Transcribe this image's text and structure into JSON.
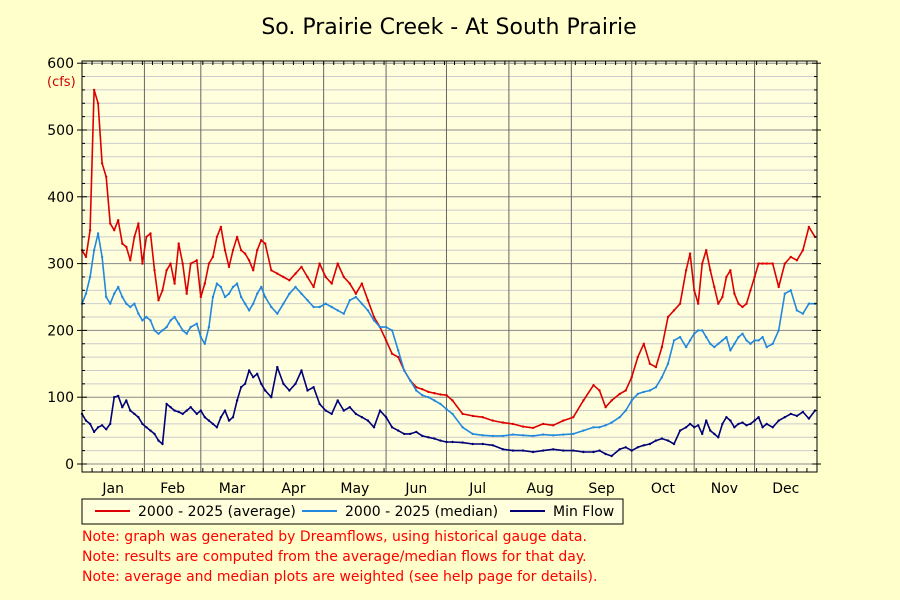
{
  "chart_data": {
    "type": "line",
    "title": "So. Prairie Creek - At South Prairie",
    "ylabel": "(cfs)",
    "xlabel": "",
    "ylim": [
      0,
      600
    ],
    "yticks": [
      0,
      100,
      200,
      300,
      400,
      500,
      600
    ],
    "grid": true,
    "legend_position": "bottom",
    "months": [
      "Jan",
      "Feb",
      "Mar",
      "Apr",
      "May",
      "Jun",
      "Jul",
      "Aug",
      "Sep",
      "Oct",
      "Nov",
      "Dec"
    ],
    "x_unit": "day of year",
    "xlim": [
      1,
      366
    ],
    "series": [
      {
        "name": "2000 - 2025 (average)",
        "color": "#dd0000",
        "x": [
          1,
          3,
          5,
          7,
          9,
          11,
          13,
          15,
          17,
          19,
          21,
          23,
          25,
          27,
          29,
          31,
          33,
          35,
          37,
          39,
          41,
          43,
          45,
          47,
          49,
          51,
          53,
          55,
          58,
          60,
          62,
          64,
          66,
          68,
          70,
          72,
          74,
          76,
          78,
          80,
          82,
          84,
          86,
          88,
          90,
          92,
          95,
          98,
          101,
          104,
          107,
          110,
          113,
          116,
          119,
          122,
          125,
          128,
          131,
          134,
          137,
          140,
          143,
          146,
          149,
          152,
          155,
          158,
          161,
          164,
          167,
          170,
          173,
          176,
          179,
          182,
          185,
          190,
          195,
          200,
          205,
          210,
          215,
          220,
          225,
          230,
          235,
          240,
          245,
          250,
          255,
          258,
          261,
          264,
          268,
          271,
          274,
          277,
          280,
          283,
          286,
          289,
          292,
          295,
          298,
          301,
          303,
          305,
          307,
          309,
          311,
          313,
          315,
          317,
          319,
          321,
          323,
          325,
          327,
          329,
          331,
          333,
          335,
          337,
          339,
          341,
          344,
          347,
          350,
          353,
          356,
          359,
          362,
          365
        ],
        "values": [
          320,
          310,
          350,
          560,
          540,
          450,
          430,
          360,
          350,
          365,
          330,
          325,
          305,
          340,
          360,
          300,
          340,
          345,
          290,
          245,
          260,
          290,
          300,
          270,
          330,
          300,
          255,
          300,
          305,
          250,
          270,
          300,
          310,
          340,
          355,
          320,
          295,
          320,
          340,
          320,
          315,
          305,
          290,
          320,
          335,
          330,
          290,
          285,
          280,
          275,
          285,
          295,
          280,
          265,
          300,
          280,
          270,
          300,
          280,
          270,
          255,
          270,
          245,
          220,
          205,
          185,
          165,
          160,
          140,
          125,
          115,
          112,
          108,
          106,
          104,
          103,
          95,
          75,
          72,
          70,
          65,
          62,
          60,
          56,
          54,
          60,
          58,
          65,
          70,
          95,
          118,
          110,
          85,
          95,
          105,
          110,
          130,
          160,
          180,
          150,
          145,
          175,
          220,
          230,
          240,
          290,
          315,
          260,
          240,
          300,
          320,
          290,
          265,
          240,
          250,
          280,
          290,
          255,
          240,
          235,
          240,
          260,
          280,
          300,
          300,
          300,
          300,
          265,
          300,
          310,
          305,
          320,
          355,
          340
        ]
      },
      {
        "name": "2000 - 2025 (median)",
        "color": "#2288dd",
        "x": [
          1,
          3,
          5,
          7,
          9,
          11,
          13,
          15,
          17,
          19,
          21,
          23,
          25,
          27,
          29,
          31,
          33,
          35,
          37,
          39,
          41,
          43,
          45,
          47,
          49,
          51,
          53,
          55,
          58,
          60,
          62,
          64,
          66,
          68,
          70,
          72,
          74,
          76,
          78,
          80,
          82,
          84,
          86,
          88,
          90,
          92,
          95,
          98,
          101,
          104,
          107,
          110,
          113,
          116,
          119,
          122,
          125,
          128,
          131,
          134,
          137,
          140,
          143,
          146,
          149,
          152,
          155,
          158,
          161,
          164,
          167,
          170,
          173,
          176,
          179,
          182,
          185,
          190,
          195,
          200,
          205,
          210,
          215,
          220,
          225,
          230,
          235,
          240,
          245,
          250,
          255,
          258,
          261,
          264,
          268,
          271,
          274,
          277,
          280,
          283,
          286,
          289,
          292,
          295,
          298,
          301,
          303,
          305,
          307,
          309,
          311,
          313,
          315,
          317,
          319,
          321,
          323,
          325,
          327,
          329,
          331,
          333,
          335,
          337,
          339,
          341,
          344,
          347,
          350,
          353,
          356,
          359,
          362,
          365
        ],
        "values": [
          240,
          255,
          280,
          320,
          345,
          310,
          250,
          240,
          255,
          265,
          250,
          240,
          235,
          240,
          225,
          215,
          220,
          215,
          200,
          195,
          200,
          205,
          215,
          220,
          210,
          200,
          195,
          205,
          210,
          190,
          180,
          205,
          250,
          270,
          265,
          250,
          255,
          265,
          270,
          250,
          240,
          230,
          240,
          255,
          265,
          250,
          235,
          225,
          240,
          255,
          265,
          255,
          245,
          235,
          235,
          240,
          235,
          230,
          225,
          245,
          250,
          240,
          230,
          215,
          205,
          205,
          200,
          170,
          140,
          125,
          110,
          103,
          100,
          95,
          90,
          82,
          75,
          55,
          45,
          43,
          42,
          42,
          44,
          43,
          42,
          44,
          43,
          44,
          45,
          50,
          55,
          55,
          58,
          62,
          70,
          80,
          95,
          105,
          108,
          110,
          115,
          130,
          150,
          185,
          190,
          175,
          185,
          195,
          200,
          200,
          190,
          180,
          175,
          180,
          185,
          190,
          170,
          180,
          190,
          195,
          185,
          180,
          185,
          185,
          190,
          175,
          180,
          200,
          255,
          260,
          230,
          225,
          240,
          240
        ]
      },
      {
        "name": "Min Flow",
        "color": "#000077",
        "x": [
          1,
          3,
          5,
          7,
          9,
          11,
          13,
          15,
          17,
          19,
          21,
          23,
          25,
          27,
          29,
          31,
          33,
          35,
          37,
          39,
          41,
          43,
          45,
          47,
          49,
          51,
          53,
          55,
          58,
          60,
          62,
          64,
          66,
          68,
          70,
          72,
          74,
          76,
          78,
          80,
          82,
          84,
          86,
          88,
          90,
          92,
          95,
          98,
          101,
          104,
          107,
          110,
          113,
          116,
          119,
          122,
          125,
          128,
          131,
          134,
          137,
          140,
          143,
          146,
          149,
          152,
          155,
          158,
          161,
          164,
          167,
          170,
          173,
          176,
          179,
          182,
          185,
          190,
          195,
          200,
          205,
          210,
          215,
          220,
          225,
          230,
          235,
          240,
          245,
          250,
          255,
          258,
          261,
          264,
          268,
          271,
          274,
          277,
          280,
          283,
          286,
          289,
          292,
          295,
          298,
          301,
          303,
          305,
          307,
          309,
          311,
          313,
          315,
          317,
          319,
          321,
          323,
          325,
          327,
          329,
          331,
          333,
          335,
          337,
          339,
          341,
          344,
          347,
          350,
          353,
          356,
          359,
          362,
          365
        ],
        "values": [
          75,
          65,
          60,
          48,
          55,
          58,
          52,
          60,
          100,
          102,
          85,
          95,
          80,
          75,
          70,
          60,
          55,
          50,
          45,
          35,
          30,
          90,
          85,
          80,
          78,
          75,
          80,
          85,
          75,
          80,
          70,
          65,
          60,
          55,
          70,
          80,
          65,
          70,
          95,
          115,
          120,
          140,
          130,
          135,
          120,
          110,
          100,
          145,
          120,
          110,
          120,
          140,
          110,
          115,
          90,
          80,
          75,
          95,
          80,
          85,
          75,
          70,
          65,
          55,
          80,
          70,
          55,
          50,
          45,
          45,
          48,
          42,
          40,
          38,
          35,
          33,
          33,
          32,
          30,
          30,
          28,
          22,
          20,
          20,
          18,
          20,
          22,
          20,
          20,
          18,
          18,
          20,
          15,
          12,
          22,
          25,
          20,
          25,
          28,
          30,
          35,
          38,
          35,
          30,
          50,
          55,
          60,
          55,
          58,
          45,
          65,
          50,
          45,
          40,
          60,
          70,
          65,
          55,
          60,
          62,
          58,
          60,
          65,
          70,
          55,
          60,
          55,
          65,
          70,
          75,
          72,
          78,
          68,
          80
        ]
      }
    ]
  },
  "notes": [
    "Note: graph was generated by Dreamflows, using historical gauge data.",
    "Note: results are computed from the average/median flows for that day.",
    "Note: average and median plots are weighted (see help page for details)."
  ]
}
